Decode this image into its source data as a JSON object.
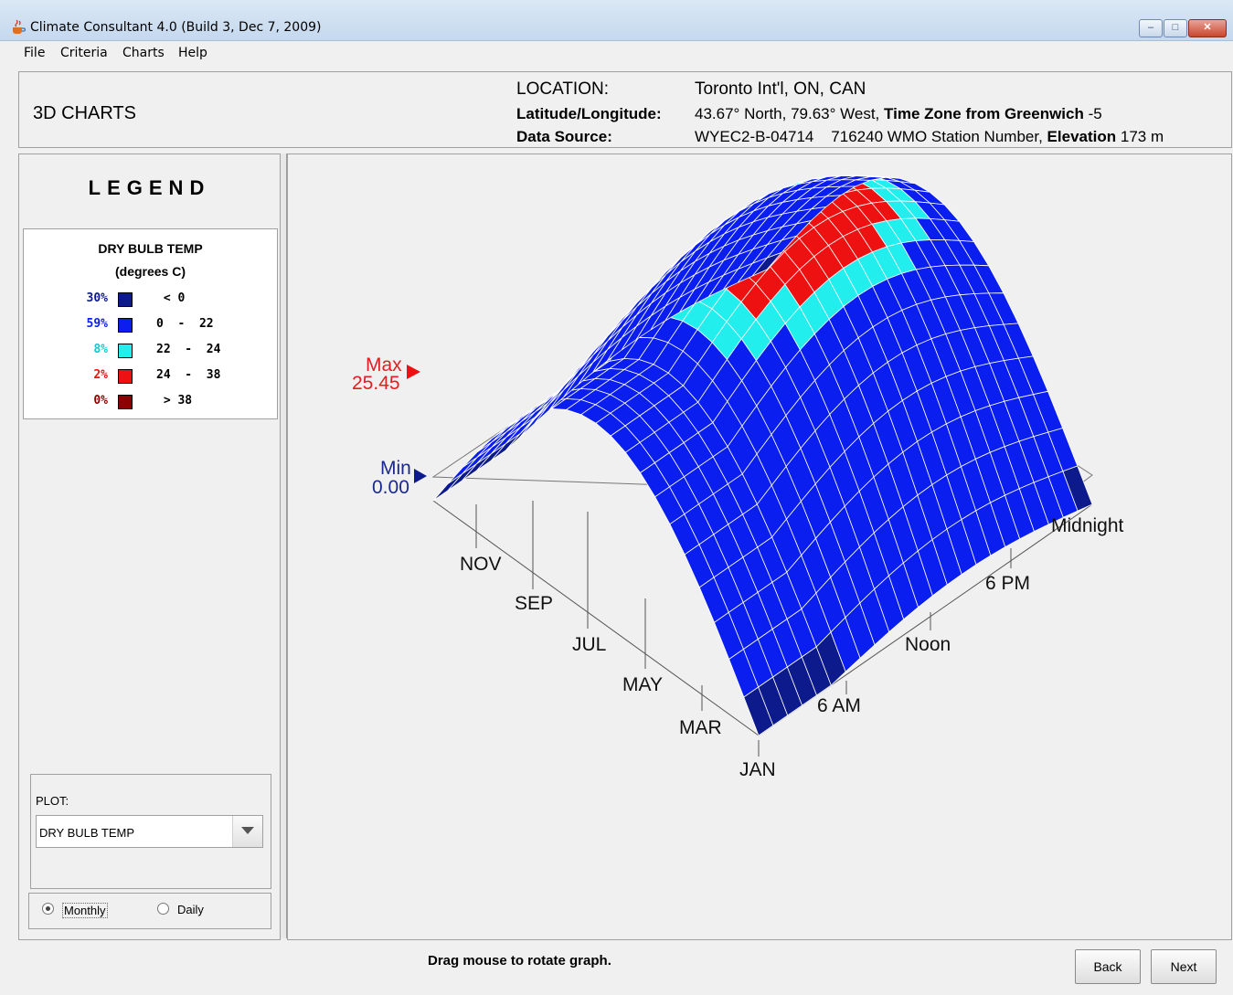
{
  "window": {
    "title": "Climate Consultant 4.0 (Build 3, Dec 7, 2009)",
    "minimize": "–",
    "maximize": "□",
    "close": "✕"
  },
  "menu": [
    "File",
    "Criteria",
    "Charts",
    "Help"
  ],
  "header": {
    "page_title": "3D CHARTS",
    "location_label": "LOCATION:",
    "location_value": "Toronto Int'l, ON, CAN",
    "latlon_label": "Latitude/Longitude:",
    "latlon_value": "43.67° North, 79.63° West,",
    "tz_label": "Time Zone from Greenwich",
    "tz_value": "-5",
    "source_label": "Data Source:",
    "source_value": "WYEC2-B-04714",
    "wmo_value": "716240 WMO Station Number,",
    "elev_label": "Elevation",
    "elev_value": "173 m"
  },
  "legend": {
    "title": "LEGEND",
    "variable": "DRY BULB TEMP",
    "unit": "(degrees C)",
    "rows": [
      {
        "pct": "30%",
        "color": "#0d1a8c",
        "range": " < 0"
      },
      {
        "pct": "59%",
        "color": "#0a1ef0",
        "range": "0  -  22"
      },
      {
        "pct": "8%",
        "color": "#22eeee",
        "range": "22  -  24"
      },
      {
        "pct": "2%",
        "color": "#ee1111",
        "range": "24  -  38"
      },
      {
        "pct": "0%",
        "color": "#8b0000",
        "range": " > 38"
      }
    ]
  },
  "plot": {
    "label": "PLOT:",
    "selected": "DRY BULB TEMP"
  },
  "radio": {
    "monthly": "Monthly",
    "daily": "Daily",
    "selected": "monthly"
  },
  "status": "Drag mouse to rotate graph.",
  "buttons": {
    "back": "Back",
    "next": "Next"
  },
  "chart_labels": {
    "max_label": "Max",
    "max_value": "25.45",
    "min_label": "Min",
    "min_value": "0.00",
    "months": [
      "JAN",
      "MAR",
      "MAY",
      "JUL",
      "SEP",
      "NOV"
    ],
    "hours": [
      "6 AM",
      "Noon",
      "6 PM",
      "Midnight"
    ]
  },
  "colors": {
    "below_zero": "#0d1a8c",
    "mid": "#0a1ef0",
    "comfort": "#22eeee",
    "hot": "#ee1111",
    "max_marker": "#ee1111",
    "min_marker": "#0d1a8c"
  }
}
